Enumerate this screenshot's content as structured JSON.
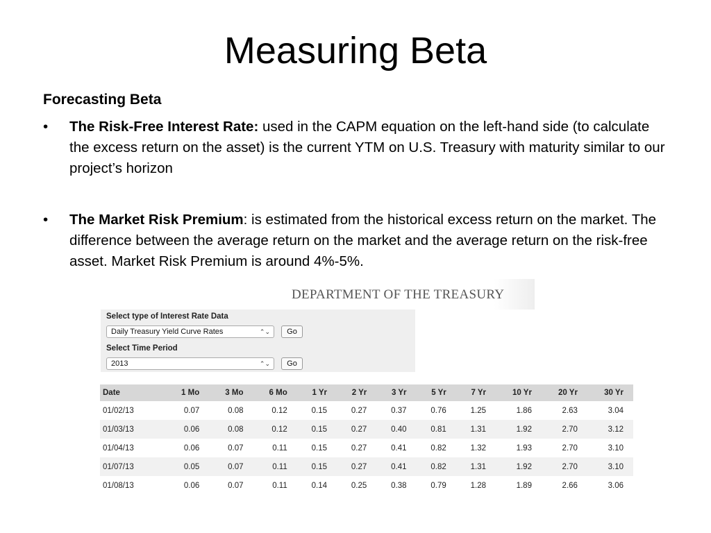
{
  "slide": {
    "title": "Measuring Beta",
    "subtitle": "Forecasting Beta",
    "bullets": [
      {
        "symbol": "•",
        "bold": "The Risk-Free Interest Rate:",
        "text": " used in the CAPM equation on the left-hand side (to calculate the excess return on the asset) is the current YTM on U.S. Treasury with maturity similar to our project’s horizon"
      },
      {
        "symbol": "•",
        "bold": "The Market Risk Premium",
        "text": ": is estimated from the historical excess return on the market. The difference between the average return on the market and the average return on the risk-free asset. Market Risk Premium is around 4%-5%."
      }
    ]
  },
  "treasury": {
    "banner": "DEPARTMENT OF THE TREASURY",
    "form": {
      "type_label": "Select type of Interest Rate Data",
      "type_value": "Daily Treasury Yield Curve Rates",
      "period_label": "Select Time Period",
      "period_value": "2013",
      "go_label": "Go",
      "arrows": "⌃⌄"
    },
    "table": {
      "headers": [
        "Date",
        "1 Mo",
        "3 Mo",
        "6 Mo",
        "1 Yr",
        "2 Yr",
        "3 Yr",
        "5 Yr",
        "7 Yr",
        "10 Yr",
        "20 Yr",
        "30 Yr"
      ],
      "rows": [
        [
          "01/02/13",
          "0.07",
          "0.08",
          "0.12",
          "0.15",
          "0.27",
          "0.37",
          "0.76",
          "1.25",
          "1.86",
          "2.63",
          "3.04"
        ],
        [
          "01/03/13",
          "0.06",
          "0.08",
          "0.12",
          "0.15",
          "0.27",
          "0.40",
          "0.81",
          "1.31",
          "1.92",
          "2.70",
          "3.12"
        ],
        [
          "01/04/13",
          "0.06",
          "0.07",
          "0.11",
          "0.15",
          "0.27",
          "0.41",
          "0.82",
          "1.32",
          "1.93",
          "2.70",
          "3.10"
        ],
        [
          "01/07/13",
          "0.05",
          "0.07",
          "0.11",
          "0.15",
          "0.27",
          "0.41",
          "0.82",
          "1.31",
          "1.92",
          "2.70",
          "3.10"
        ],
        [
          "01/08/13",
          "0.06",
          "0.07",
          "0.11",
          "0.14",
          "0.25",
          "0.38",
          "0.79",
          "1.28",
          "1.89",
          "2.66",
          "3.06"
        ]
      ]
    }
  }
}
